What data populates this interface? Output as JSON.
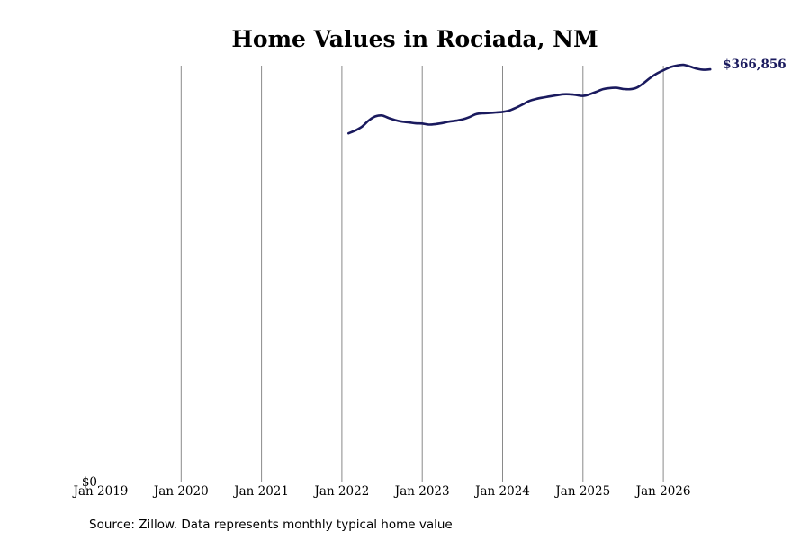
{
  "chart_data": {
    "type": "line",
    "title": "Home Values in Rociada, NM",
    "source": "Source: Zillow. Data represents monthly typical home value",
    "xlabel": "",
    "ylabel": "",
    "x_ticks": [
      "Jan 2019",
      "Jan 2020",
      "Jan 2021",
      "Jan 2022",
      "Jan 2023",
      "Jan 2024",
      "Jan 2025",
      "Jan 2026"
    ],
    "x_range": [
      "2019-01",
      "2026-09"
    ],
    "y_ticks": [
      {
        "value": 0,
        "label": "$0"
      }
    ],
    "ylim": [
      0,
      375000
    ],
    "grid": {
      "vertical": true,
      "horizontal": false
    },
    "legend": "none",
    "line_color": "#1a1a5e",
    "end_label": "$366,856",
    "series": [
      {
        "x": [
          "2022-02",
          "2022-03",
          "2022-04",
          "2022-05",
          "2022-06",
          "2022-07",
          "2022-08",
          "2022-09",
          "2022-10",
          "2022-11",
          "2022-12",
          "2023-01",
          "2023-02",
          "2023-03",
          "2023-04",
          "2023-05",
          "2023-06",
          "2023-07",
          "2023-08",
          "2023-09",
          "2023-10",
          "2023-11",
          "2023-12",
          "2024-01",
          "2024-02",
          "2024-03",
          "2024-04",
          "2024-05",
          "2024-06",
          "2024-07",
          "2024-08",
          "2024-09",
          "2024-10",
          "2024-11",
          "2024-12",
          "2025-01",
          "2025-02",
          "2025-03",
          "2025-04",
          "2025-05",
          "2025-06",
          "2025-07",
          "2025-08",
          "2025-09",
          "2025-10",
          "2025-11",
          "2025-12",
          "2026-01",
          "2026-02",
          "2026-03",
          "2026-04",
          "2026-05",
          "2026-06",
          "2026-07",
          "2026-08"
        ],
        "values": [
          314000,
          316500,
          320000,
          325500,
          329200,
          330000,
          327800,
          325800,
          324500,
          323800,
          323000,
          322800,
          321800,
          322300,
          323200,
          324500,
          325300,
          326500,
          328500,
          331200,
          332000,
          332300,
          332800,
          333300,
          334500,
          337000,
          340000,
          343200,
          345000,
          346200,
          347200,
          348200,
          349200,
          349200,
          348500,
          347700,
          349200,
          351500,
          353800,
          354800,
          355000,
          354000,
          353700,
          355000,
          359000,
          363800,
          367800,
          370800,
          373500,
          375100,
          375700,
          374200,
          372200,
          371300,
          371700
        ]
      }
    ]
  }
}
